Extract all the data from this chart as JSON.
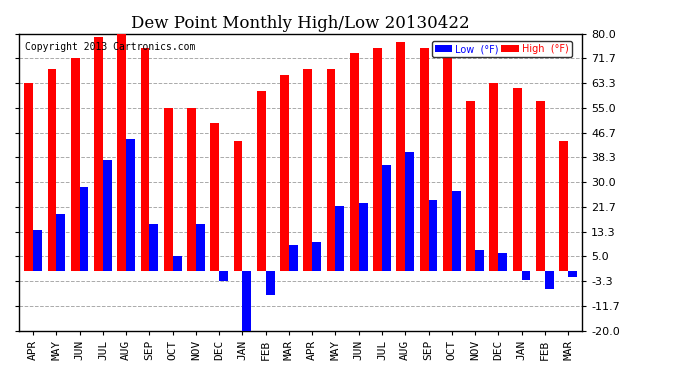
{
  "title": "Dew Point Monthly High/Low 20130422",
  "copyright": "Copyright 2013 Cartronics.com",
  "months": [
    "APR",
    "MAY",
    "JUN",
    "JUL",
    "AUG",
    "SEP",
    "OCT",
    "NOV",
    "DEC",
    "JAN",
    "FEB",
    "MAR",
    "APR",
    "MAY",
    "JUN",
    "JUL",
    "AUG",
    "SEP",
    "OCT",
    "NOV",
    "DEC",
    "JAN",
    "FEB",
    "MAR"
  ],
  "high_values": [
    63.3,
    68.0,
    71.7,
    78.8,
    80.0,
    75.2,
    55.0,
    55.0,
    50.0,
    44.0,
    60.8,
    66.2,
    68.0,
    68.0,
    73.4,
    75.2,
    77.0,
    75.2,
    71.7,
    57.2,
    63.3,
    61.7,
    57.2,
    44.0
  ],
  "low_values": [
    14.0,
    19.4,
    28.4,
    37.4,
    44.6,
    15.8,
    5.0,
    15.8,
    -3.3,
    -20.0,
    -8.0,
    9.0,
    10.0,
    22.0,
    23.0,
    35.6,
    40.0,
    24.0,
    27.0,
    7.2,
    6.0,
    -3.0,
    -6.0,
    -2.0
  ],
  "ylim": [
    -20.0,
    80.0
  ],
  "yticks": [
    -20.0,
    -11.7,
    -3.3,
    5.0,
    13.3,
    21.7,
    30.0,
    38.3,
    46.7,
    55.0,
    63.3,
    71.7,
    80.0
  ],
  "high_color": "#FF0000",
  "low_color": "#0000FF",
  "bg_color": "#FFFFFF",
  "bar_width": 0.38,
  "title_fontsize": 12,
  "tick_fontsize": 8,
  "grid_color": "#AAAAAA"
}
